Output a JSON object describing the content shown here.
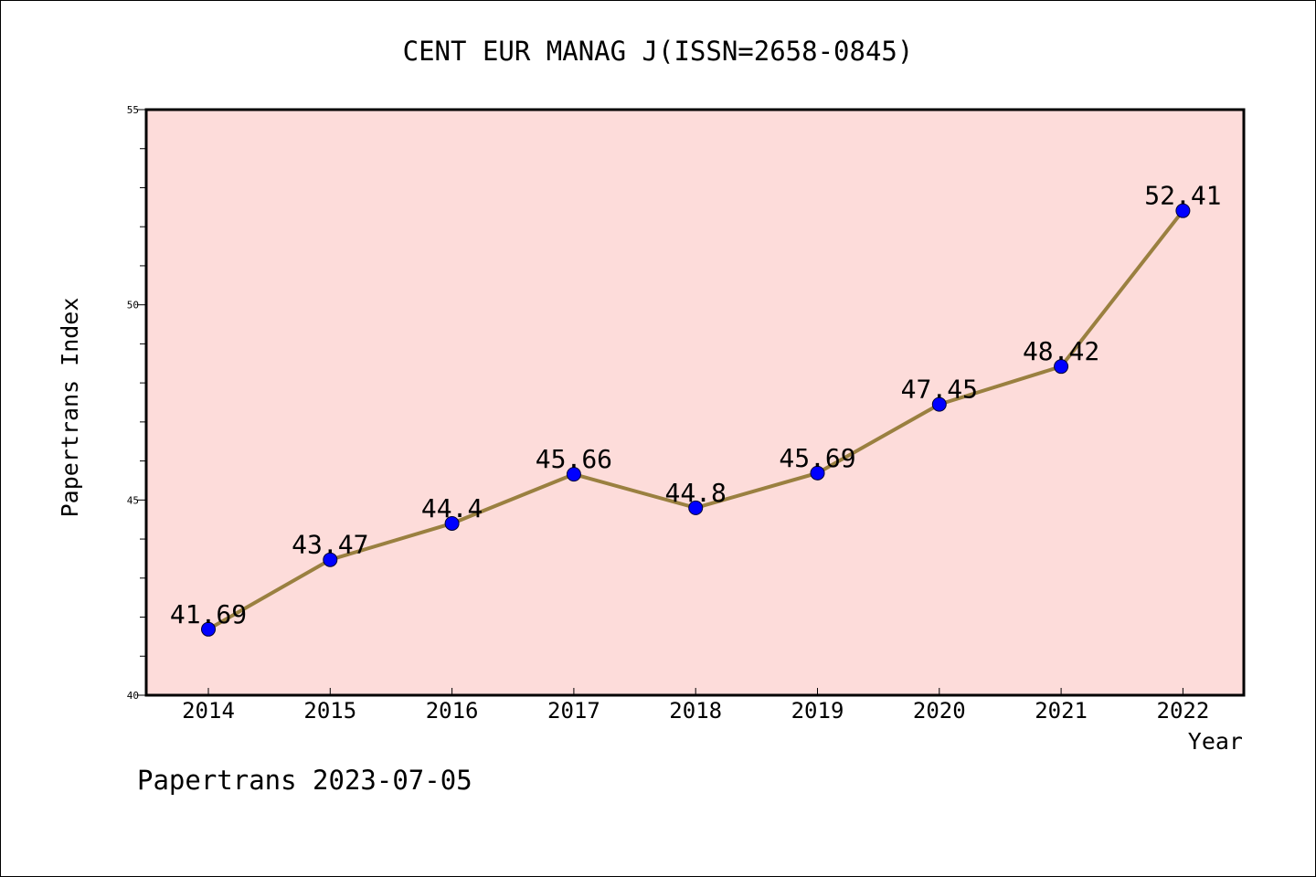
{
  "chart_data": {
    "type": "line",
    "title": "CENT EUR MANAG J(ISSN=2658-0845)",
    "xlabel": "Year",
    "ylabel": "Papertrans Index",
    "categories": [
      "2014",
      "2015",
      "2016",
      "2017",
      "2018",
      "2019",
      "2020",
      "2021",
      "2022"
    ],
    "series": [
      {
        "values": [
          41.69,
          43.47,
          44.4,
          45.66,
          44.8,
          45.69,
          47.45,
          48.42,
          52.41
        ],
        "labels": [
          "41.69",
          "43.47",
          "44.4",
          "45.66",
          "44.8",
          "45.69",
          "47.45",
          "48.42",
          "52.41"
        ]
      }
    ],
    "ylim": [
      40,
      55
    ],
    "yticks": [
      40,
      45,
      50,
      55
    ],
    "yticks_labels": [
      "40",
      "45",
      "50",
      "55"
    ],
    "grid": false,
    "plot_background": "#FDDCDA",
    "line_color": "#9A8040",
    "marker_color": "#0000FF"
  },
  "footer": {
    "watermark": "Papertrans 2023-07-05"
  }
}
